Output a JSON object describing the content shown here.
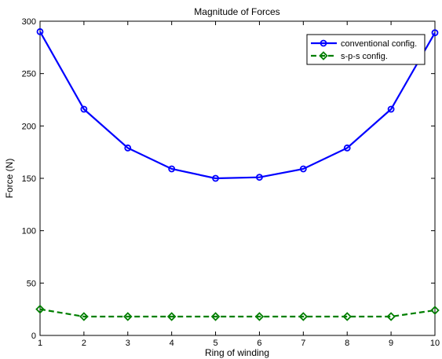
{
  "chart_data": {
    "type": "line",
    "title": "Magnitude of Forces",
    "xlabel": "Ring of winding",
    "ylabel": "Force (N)",
    "xlim": [
      1,
      10
    ],
    "ylim": [
      0,
      300
    ],
    "xticks": [
      1,
      2,
      3,
      4,
      5,
      6,
      7,
      8,
      9,
      10
    ],
    "yticks": [
      0,
      50,
      100,
      150,
      200,
      250,
      300
    ],
    "grid": false,
    "legend_position": "top-right",
    "series": [
      {
        "name": "conventional config.",
        "color": "#0000ff",
        "line_style": "solid",
        "marker": "circle",
        "x": [
          1,
          2,
          3,
          4,
          5,
          6,
          7,
          8,
          9,
          10
        ],
        "y": [
          290,
          216,
          179,
          159,
          150,
          151,
          159,
          179,
          216,
          289
        ]
      },
      {
        "name": "s-p-s config.",
        "color": "#007f00",
        "line_style": "dashed",
        "marker": "diamond",
        "x": [
          1,
          2,
          3,
          4,
          5,
          6,
          7,
          8,
          9,
          10
        ],
        "y": [
          25,
          18,
          18,
          18,
          18,
          18,
          18,
          18,
          18,
          24
        ]
      }
    ]
  }
}
